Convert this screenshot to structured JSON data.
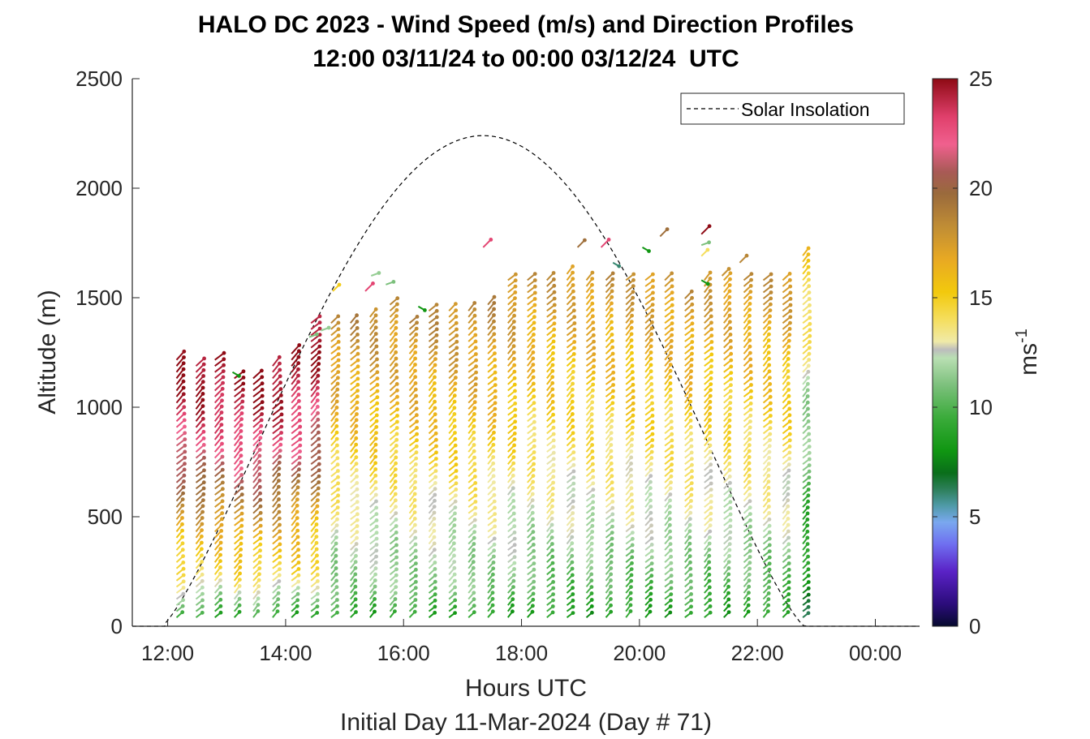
{
  "chart_data": {
    "type": "scatter",
    "title": "HALO DC 2023 - Wind Speed (m/s) and Direction Profiles",
    "subtitle": "12:00 03/11/24 to 00:00 03/12/24  UTC",
    "xlabel": "Hours UTC",
    "xlabel2": "Initial Day 11-Mar-2024 (Day # 71)",
    "ylabel": "Altitude (m)",
    "xlim": [
      11.4,
      24.75
    ],
    "ylim": [
      0,
      2500
    ],
    "x_ticks": [
      12,
      14,
      16,
      18,
      20,
      22,
      24
    ],
    "x_tick_labels": [
      "12:00",
      "14:00",
      "16:00",
      "18:00",
      "20:00",
      "22:00",
      "00:00"
    ],
    "y_ticks": [
      0,
      500,
      1000,
      1500,
      2000,
      2500
    ],
    "y_tick_labels": [
      "0",
      "500",
      "1000",
      "1500",
      "2000",
      "2500"
    ],
    "colorbar": {
      "label": "ms",
      "label_superscript": "-1",
      "range": [
        0,
        25
      ],
      "ticks": [
        0,
        5,
        10,
        15,
        20,
        25
      ],
      "tick_labels": [
        "0",
        "5",
        "10",
        "15",
        "20",
        "25"
      ]
    },
    "legend": {
      "position": "top-right",
      "entries": [
        "Solar Insolation"
      ]
    },
    "solar_insolation": {
      "style": "dashed",
      "peak_hour": 17.35,
      "peak_altitude": 2240,
      "start_hour": 11.95,
      "end_hour": 22.85,
      "flat_from_hour": 11.4,
      "flat_to_hour": 24.75
    },
    "profile_times": [
      12.15,
      12.48,
      12.8,
      13.13,
      13.45,
      13.78,
      14.1,
      14.43,
      14.77,
      15.1,
      15.43,
      15.77,
      16.1,
      16.43,
      16.77,
      17.1,
      17.43,
      17.77,
      18.1,
      18.43,
      18.77,
      19.1,
      19.43,
      19.77,
      20.1,
      20.43,
      20.77,
      21.1,
      21.43,
      21.77,
      22.1,
      22.43,
      22.77
    ],
    "profile_tops": [
      1240,
      1190,
      1240,
      1150,
      1140,
      1190,
      1270,
      1400,
      1400,
      1410,
      1420,
      1480,
      1400,
      1440,
      1460,
      1440,
      1490,
      1600,
      1600,
      1600,
      1620,
      1600,
      1600,
      1600,
      1600,
      1600,
      1500,
      1600,
      1600,
      1600,
      1600,
      1600,
      1700
    ],
    "speed_profiles_by_altitude_fraction": {
      "early": [
        [
          0,
          8
        ],
        [
          0.08,
          11
        ],
        [
          0.18,
          14.5
        ],
        [
          0.32,
          16
        ],
        [
          0.5,
          19.5
        ],
        [
          0.68,
          22.5
        ],
        [
          0.85,
          24.5
        ],
        [
          1,
          25
        ]
      ],
      "mid": [
        [
          0,
          8
        ],
        [
          0.1,
          11
        ],
        [
          0.25,
          12
        ],
        [
          0.4,
          13.5
        ],
        [
          0.6,
          15.5
        ],
        [
          0.8,
          17
        ],
        [
          1,
          18.5
        ]
      ],
      "late": [
        [
          0,
          8
        ],
        [
          0.1,
          10
        ],
        [
          0.3,
          12.5
        ],
        [
          0.5,
          14
        ],
        [
          0.75,
          16
        ],
        [
          1,
          18
        ]
      ],
      "end": [
        [
          0,
          7
        ],
        [
          0.2,
          8.5
        ],
        [
          0.4,
          10.5
        ],
        [
          0.6,
          12
        ],
        [
          0.8,
          14
        ],
        [
          1,
          15.5
        ]
      ]
    },
    "scattered_points_above_profiles": [
      {
        "time": 13.1,
        "alt": 1160,
        "speed": 8
      },
      {
        "time": 14.4,
        "alt": 1320,
        "speed": 11
      },
      {
        "time": 14.6,
        "alt": 1350,
        "speed": 11.5
      },
      {
        "time": 14.8,
        "alt": 1530,
        "speed": 15
      },
      {
        "time": 15.45,
        "alt": 1600,
        "speed": 11.5
      },
      {
        "time": 15.7,
        "alt": 1560,
        "speed": 11
      },
      {
        "time": 16.25,
        "alt": 1460,
        "speed": 8
      },
      {
        "time": 15.35,
        "alt": 1530,
        "speed": 23
      },
      {
        "time": 17.35,
        "alt": 1730,
        "speed": 23
      },
      {
        "time": 18.95,
        "alt": 1730,
        "speed": 19.5
      },
      {
        "time": 19.35,
        "alt": 1730,
        "speed": 23
      },
      {
        "time": 19.55,
        "alt": 1660,
        "speed": 6
      },
      {
        "time": 20.05,
        "alt": 1730,
        "speed": 8
      },
      {
        "time": 20.35,
        "alt": 1780,
        "speed": 19.5
      },
      {
        "time": 21.05,
        "alt": 1790,
        "speed": 25
      },
      {
        "time": 21.05,
        "alt": 1740,
        "speed": 11
      },
      {
        "time": 21.05,
        "alt": 1690,
        "speed": 14
      },
      {
        "time": 21.05,
        "alt": 1580,
        "speed": 8
      },
      {
        "time": 21.7,
        "alt": 1660,
        "speed": 18.5
      },
      {
        "time": 21.4,
        "alt": 1600,
        "speed": 18
      }
    ],
    "wind_direction_deg_typical": 225
  }
}
